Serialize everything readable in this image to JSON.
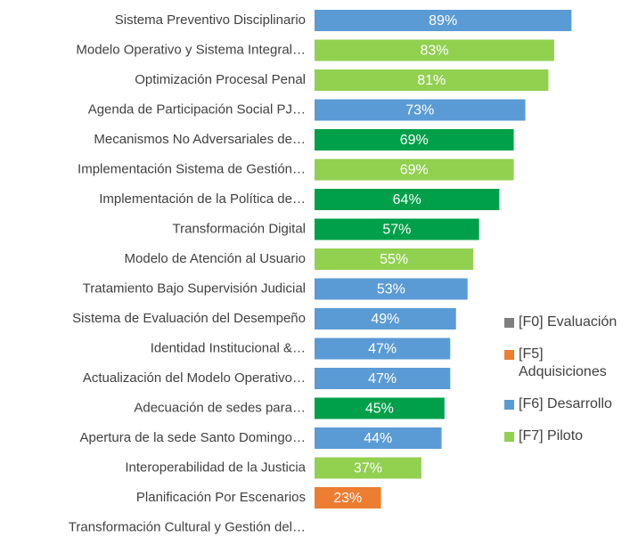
{
  "chart_data": {
    "type": "bar",
    "orientation": "horizontal",
    "categories": [
      "Sistema Preventivo Disciplinario",
      "Modelo Operativo y Sistema Integral…",
      "Optimización Procesal Penal",
      "Agenda de Participación Social PJ…",
      "Mecanismos No Adversariales de…",
      "Implementación Sistema de Gestión…",
      "Implementación de la Política de…",
      "Transformación Digital",
      "Modelo de Atención al Usuario",
      "Tratamiento Bajo Supervisión Judicial",
      "Sistema de Evaluación del Desempeño",
      "Identidad Institucional &…",
      "Actualización del Modelo Operativo…",
      "Adecuación de sedes para…",
      "Apertura de la sede Santo Domingo…",
      "Interoperabilidad de la Justicia",
      "Planificación Por Escenarios",
      "Transformación Cultural y Gestión del…"
    ],
    "values": [
      89,
      83,
      81,
      73,
      69,
      69,
      64,
      57,
      55,
      53,
      49,
      47,
      47,
      45,
      44,
      37,
      23,
      null
    ],
    "value_labels": [
      "89%",
      "83%",
      "81%",
      "73%",
      "69%",
      "69%",
      "64%",
      "57%",
      "55%",
      "53%",
      "49%",
      "47%",
      "47%",
      "45%",
      "44%",
      "37%",
      "23%",
      null
    ],
    "colors": [
      "#5b9bd5",
      "#92d050",
      "#92d050",
      "#5b9bd5",
      "#00a04a",
      "#92d050",
      "#00a04a",
      "#00a04a",
      "#92d050",
      "#5b9bd5",
      "#5b9bd5",
      "#5b9bd5",
      "#5b9bd5",
      "#00a04a",
      "#5b9bd5",
      "#92d050",
      "#ed7d31",
      null
    ],
    "xlim": [
      0,
      100
    ],
    "legend": [
      {
        "name": "[F0] Evaluación",
        "color": "#7f7f7f"
      },
      {
        "name": "[F5] Adquisiciones",
        "color": "#ed7d31"
      },
      {
        "name": "[F6] Desarrollo",
        "color": "#5b9bd5"
      },
      {
        "name": "[F7] Piloto",
        "color": "#92d050"
      }
    ],
    "legend_position": "right"
  }
}
